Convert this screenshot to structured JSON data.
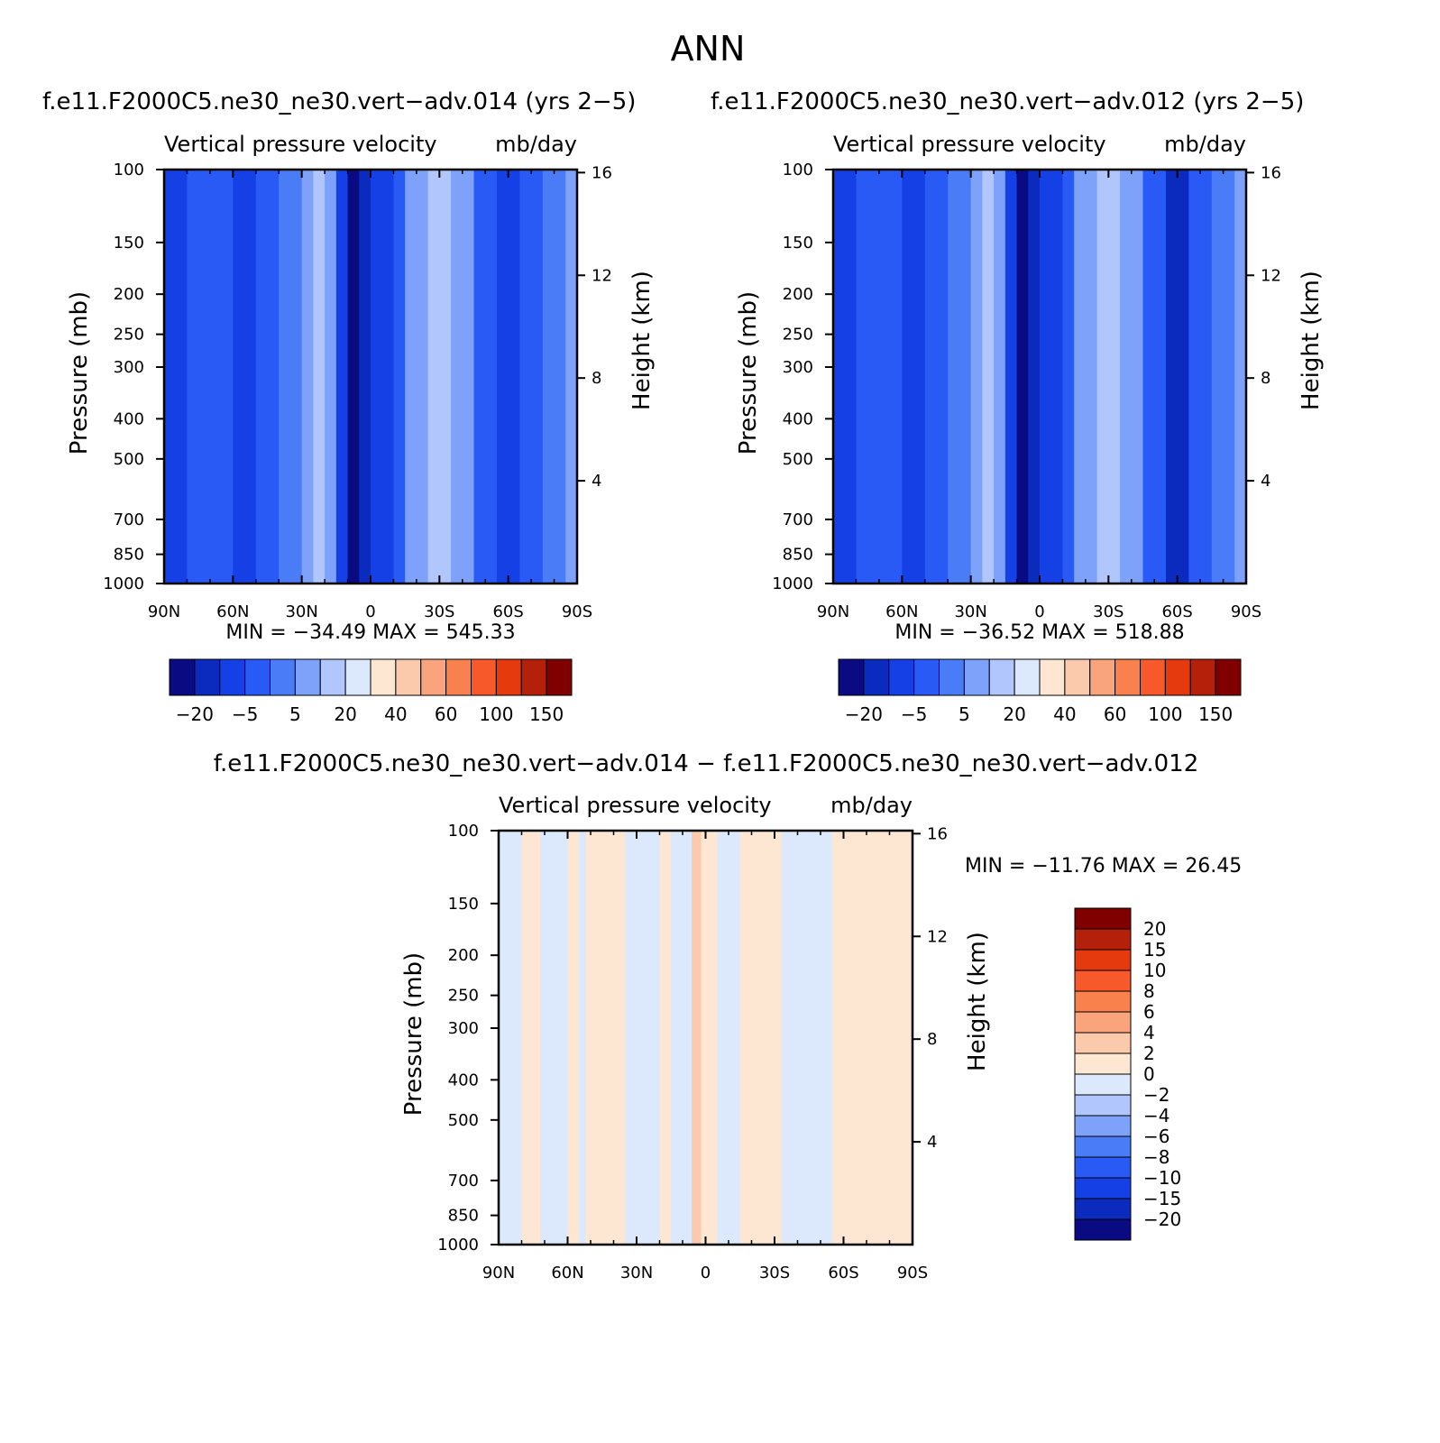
{
  "figure": {
    "season": "ANN"
  },
  "colors": {
    "neg_scale": [
      "#0a0a82",
      "#0b2bbf",
      "#1440e6",
      "#2a5af5",
      "#4a7cf7",
      "#7ea2fa",
      "#b0c6fc",
      "#dce9fd"
    ],
    "pos_scale": [
      "#fde7d3",
      "#fbc9ab",
      "#f9a47c",
      "#f8814e",
      "#f7592a",
      "#e43a0e",
      "#b4200a",
      "#800000"
    ]
  },
  "chart_data": [
    {
      "type": "heatmap",
      "panel": "top-left",
      "case_title": "f.e11.F2000C5.ne30_ne30.vert−adv.014 (yrs 2−5)",
      "variable": "Vertical pressure velocity",
      "units": "mb/day",
      "ylabel": "Pressure (mb)",
      "y2label": "Height (km)",
      "xticks": [
        "90N",
        "60N",
        "30N",
        "0",
        "30S",
        "60S",
        "90S"
      ],
      "yticks": [
        100,
        150,
        200,
        250,
        300,
        400,
        500,
        700,
        850,
        1000
      ],
      "y2ticks": [
        4,
        8,
        12,
        16
      ],
      "stats": {
        "min_label": "MIN =",
        "min": "−34.49",
        "max_label": "MAX =",
        "max": "545.33"
      },
      "colorbar_labels": [
        "−20",
        "−5",
        "5",
        "20",
        "40",
        "60",
        "100",
        "150"
      ],
      "bands": [
        {
          "lat": 90,
          "level": 2
        },
        {
          "lat": 80,
          "level": 3
        },
        {
          "lat": 70,
          "level": 3
        },
        {
          "lat": 60,
          "level": 2
        },
        {
          "lat": 50,
          "level": 3
        },
        {
          "lat": 40,
          "level": 4
        },
        {
          "lat": 30,
          "level": 5
        },
        {
          "lat": 25,
          "level": 6
        },
        {
          "lat": 20,
          "level": 5
        },
        {
          "lat": 15,
          "level": 2
        },
        {
          "lat": 10,
          "level": 0
        },
        {
          "lat": 5,
          "level": 1
        },
        {
          "lat": 0,
          "level": 2
        },
        {
          "lat": -5,
          "level": 2
        },
        {
          "lat": -10,
          "level": 3
        },
        {
          "lat": -15,
          "level": 5
        },
        {
          "lat": -25,
          "level": 6
        },
        {
          "lat": -35,
          "level": 5
        },
        {
          "lat": -45,
          "level": 3
        },
        {
          "lat": -55,
          "level": 2
        },
        {
          "lat": -65,
          "level": 3
        },
        {
          "lat": -75,
          "level": 4
        },
        {
          "lat": -85,
          "level": 5
        }
      ]
    },
    {
      "type": "heatmap",
      "panel": "top-right",
      "case_title": "f.e11.F2000C5.ne30_ne30.vert−adv.012 (yrs 2−5)",
      "variable": "Vertical pressure velocity",
      "units": "mb/day",
      "ylabel": "Pressure (mb)",
      "y2label": "Height (km)",
      "xticks": [
        "90N",
        "60N",
        "30N",
        "0",
        "30S",
        "60S",
        "90S"
      ],
      "yticks": [
        100,
        150,
        200,
        250,
        300,
        400,
        500,
        700,
        850,
        1000
      ],
      "y2ticks": [
        4,
        8,
        12,
        16
      ],
      "stats": {
        "min_label": "MIN =",
        "min": "−36.52",
        "max_label": "MAX =",
        "max": "518.88"
      },
      "colorbar_labels": [
        "−20",
        "−5",
        "5",
        "20",
        "40",
        "60",
        "100",
        "150"
      ],
      "bands": [
        {
          "lat": 90,
          "level": 2
        },
        {
          "lat": 80,
          "level": 3
        },
        {
          "lat": 70,
          "level": 3
        },
        {
          "lat": 60,
          "level": 2
        },
        {
          "lat": 50,
          "level": 3
        },
        {
          "lat": 40,
          "level": 4
        },
        {
          "lat": 30,
          "level": 5
        },
        {
          "lat": 25,
          "level": 6
        },
        {
          "lat": 20,
          "level": 5
        },
        {
          "lat": 15,
          "level": 2
        },
        {
          "lat": 10,
          "level": 0
        },
        {
          "lat": 5,
          "level": 1
        },
        {
          "lat": 0,
          "level": 2
        },
        {
          "lat": -5,
          "level": 2
        },
        {
          "lat": -10,
          "level": 3
        },
        {
          "lat": -15,
          "level": 5
        },
        {
          "lat": -25,
          "level": 6
        },
        {
          "lat": -35,
          "level": 5
        },
        {
          "lat": -45,
          "level": 3
        },
        {
          "lat": -55,
          "level": 1
        },
        {
          "lat": -65,
          "level": 3
        },
        {
          "lat": -75,
          "level": 4
        },
        {
          "lat": -85,
          "level": 5
        }
      ]
    },
    {
      "type": "heatmap",
      "panel": "bottom-difference",
      "case_title": "f.e11.F2000C5.ne30_ne30.vert−adv.014 − f.e11.F2000C5.ne30_ne30.vert−adv.012",
      "variable": "Vertical pressure velocity",
      "units": "mb/day",
      "ylabel": "Pressure (mb)",
      "y2label": "Height (km)",
      "xticks": [
        "90N",
        "60N",
        "30N",
        "0",
        "30S",
        "60S",
        "90S"
      ],
      "yticks": [
        100,
        150,
        200,
        250,
        300,
        400,
        500,
        700,
        850,
        1000
      ],
      "y2ticks": [
        4,
        8,
        12,
        16
      ],
      "stats": {
        "min_label": "MIN =",
        "min": "−11.76",
        "max_label": "MAX =",
        "max": "26.45"
      },
      "colorbar_labels": [
        "20",
        "15",
        "10",
        "8",
        "6",
        "4",
        "2",
        "0",
        "−2",
        "−4",
        "−6",
        "−8",
        "−10",
        "−15",
        "−20"
      ],
      "bands": [
        {
          "lat": 90,
          "level": 7
        },
        {
          "lat": 80,
          "level": 8
        },
        {
          "lat": 72,
          "level": 7
        },
        {
          "lat": 60,
          "level": 8
        },
        {
          "lat": 55,
          "level": 7
        },
        {
          "lat": 52,
          "level": 8
        },
        {
          "lat": 35,
          "level": 7
        },
        {
          "lat": 20,
          "level": 8
        },
        {
          "lat": 15,
          "level": 7
        },
        {
          "lat": 6,
          "level": 9
        },
        {
          "lat": 2,
          "level": 8
        },
        {
          "lat": -5,
          "level": 7
        },
        {
          "lat": -15,
          "level": 8
        },
        {
          "lat": -33,
          "level": 7
        },
        {
          "lat": -55,
          "level": 8
        },
        {
          "lat": -85,
          "level": 8
        }
      ]
    }
  ]
}
